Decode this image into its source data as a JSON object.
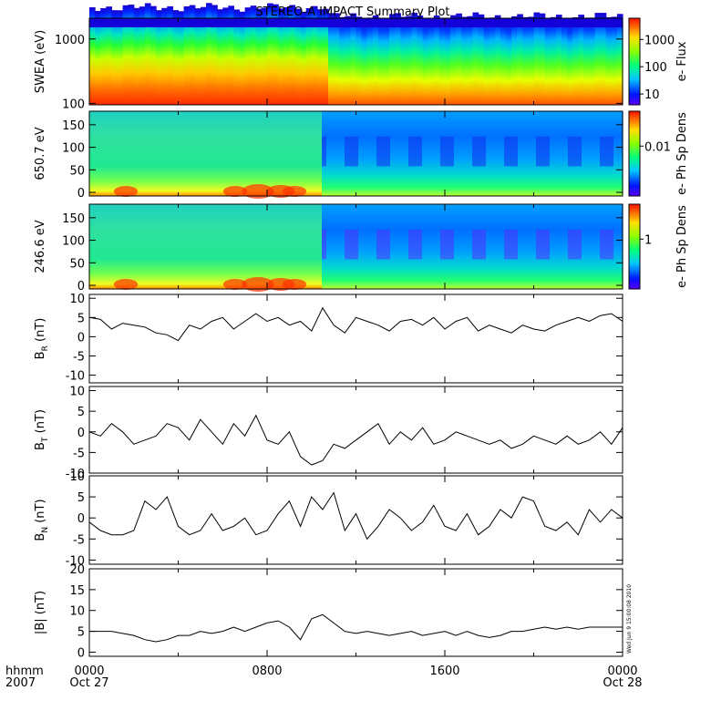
{
  "chart_data": {
    "title": "STEREO-A IMPACT Summary Plot",
    "type": "summary-plot",
    "x_axis": {
      "ticks": [
        "0000",
        "0800",
        "1600",
        "0000"
      ],
      "dates": [
        "Oct 27",
        "",
        "",
        "Oct 28"
      ],
      "corner_top": "hhmm",
      "corner_bottom": "2007",
      "range_hours": [
        0,
        24
      ]
    },
    "timestamp": "Wed Jun  9 15:00:08 2010",
    "panels": [
      {
        "id": "swea",
        "type": "heatmap",
        "ylabel": "SWEA (eV)",
        "yscale": "log",
        "ylim": [
          95,
          2100
        ],
        "yticks": [
          "100",
          "1000"
        ],
        "ytick_values": [
          100,
          1000
        ],
        "colorbar": {
          "label": "e- Flux",
          "ticks": [
            "1000",
            "100",
            "10"
          ],
          "tick_values": [
            1000,
            100,
            10
          ],
          "scale": "log",
          "range": [
            4,
            6000
          ]
        }
      },
      {
        "id": "pad650",
        "type": "heatmap",
        "ylabel": "650.7 eV",
        "ylim": [
          -8,
          180
        ],
        "yticks": [
          "150",
          "100",
          "50",
          "0"
        ],
        "ytick_values": [
          150,
          100,
          50,
          0
        ],
        "colorbar": {
          "label": "e- Ph Sp Dens",
          "ticks": [
            "0.01"
          ],
          "tick_values": [
            0.01
          ],
          "scale": "log",
          "range": [
            0.001,
            0.05
          ]
        }
      },
      {
        "id": "pad246",
        "type": "heatmap",
        "ylabel": "246.6 eV",
        "ylim": [
          -8,
          180
        ],
        "yticks": [
          "150",
          "100",
          "50",
          "0"
        ],
        "ytick_values": [
          150,
          100,
          50,
          0
        ],
        "colorbar": {
          "label": "e- Ph Sp Dens",
          "ticks": [
            "1"
          ],
          "tick_values": [
            1
          ],
          "scale": "log",
          "range": [
            0.1,
            5
          ]
        }
      },
      {
        "id": "br",
        "type": "line",
        "ylabel": "B",
        "ylabel_sub": "R",
        "ylabel_unit": "(nT)",
        "ylim": [
          -12,
          11
        ],
        "yticks": [
          "10",
          "5",
          "0",
          "-5",
          "-10"
        ],
        "ytick_values": [
          10,
          5,
          0,
          -5,
          -10
        ],
        "x": [
          0,
          0.5,
          1,
          1.5,
          2,
          2.5,
          3,
          3.5,
          4,
          4.5,
          5,
          5.5,
          6,
          6.5,
          7,
          7.5,
          8,
          8.5,
          9,
          9.5,
          10,
          10.5,
          11,
          11.5,
          12,
          12.5,
          13,
          13.5,
          14,
          14.5,
          15,
          15.5,
          16,
          16.5,
          17,
          17.5,
          18,
          18.5,
          19,
          19.5,
          20,
          20.5,
          21,
          21.5,
          22,
          22.5,
          23,
          23.5,
          24
        ],
        "values": [
          5,
          4.5,
          2,
          3.5,
          3,
          2.5,
          1,
          0.5,
          -1,
          3,
          2,
          4,
          5,
          2,
          4,
          6,
          4,
          5,
          3,
          4,
          1.5,
          7.5,
          3,
          1,
          5,
          4,
          3,
          1.5,
          4,
          4.5,
          3,
          5,
          2,
          4,
          5,
          1.5,
          3,
          2,
          1,
          3,
          2,
          1.5,
          3,
          4,
          5,
          4,
          5.5,
          6,
          4
        ]
      },
      {
        "id": "bt",
        "type": "line",
        "ylabel": "B",
        "ylabel_sub": "T",
        "ylabel_unit": "(nT)",
        "ylim": [
          -10,
          11
        ],
        "yticks": [
          "10",
          "5",
          "0",
          "-5",
          "-10"
        ],
        "ytick_values": [
          10,
          5,
          0,
          -5,
          -10
        ],
        "x": [
          0,
          0.5,
          1,
          1.5,
          2,
          2.5,
          3,
          3.5,
          4,
          4.5,
          5,
          5.5,
          6,
          6.5,
          7,
          7.5,
          8,
          8.5,
          9,
          9.5,
          10,
          10.5,
          11,
          11.5,
          12,
          12.5,
          13,
          13.5,
          14,
          14.5,
          15,
          15.5,
          16,
          16.5,
          17,
          17.5,
          18,
          18.5,
          19,
          19.5,
          20,
          20.5,
          21,
          21.5,
          22,
          22.5,
          23,
          23.5,
          24
        ],
        "values": [
          0,
          -1,
          2,
          0,
          -3,
          -2,
          -1,
          2,
          1,
          -2,
          3,
          0,
          -3,
          2,
          -1,
          4,
          -2,
          -3,
          0,
          -6,
          -8,
          -7,
          -3,
          -4,
          -2,
          0,
          2,
          -3,
          0,
          -2,
          1,
          -3,
          -2,
          0,
          -1,
          -2,
          -3,
          -2,
          -4,
          -3,
          -1,
          -2,
          -3,
          -1,
          -3,
          -2,
          0,
          -3,
          1
        ]
      },
      {
        "id": "bn",
        "type": "line",
        "ylabel": "B",
        "ylabel_sub": "N",
        "ylabel_unit": "(nT)",
        "ylim": [
          -11,
          10
        ],
        "yticks": [
          "10",
          "5",
          "0",
          "-5",
          "-10"
        ],
        "ytick_values": [
          10,
          5,
          0,
          -5,
          -10
        ],
        "x": [
          0,
          0.5,
          1,
          1.5,
          2,
          2.5,
          3,
          3.5,
          4,
          4.5,
          5,
          5.5,
          6,
          6.5,
          7,
          7.5,
          8,
          8.5,
          9,
          9.5,
          10,
          10.5,
          11,
          11.5,
          12,
          12.5,
          13,
          13.5,
          14,
          14.5,
          15,
          15.5,
          16,
          16.5,
          17,
          17.5,
          18,
          18.5,
          19,
          19.5,
          20,
          20.5,
          21,
          21.5,
          22,
          22.5,
          23,
          23.5,
          24
        ],
        "values": [
          -1,
          -3,
          -4,
          -4,
          -3,
          4,
          2,
          5,
          -2,
          -4,
          -3,
          1,
          -3,
          -2,
          0,
          -4,
          -3,
          1,
          4,
          -2,
          5,
          2,
          6,
          -3,
          1,
          -5,
          -2,
          2,
          0,
          -3,
          -1,
          3,
          -2,
          -3,
          1,
          -4,
          -2,
          2,
          0,
          5,
          4,
          -2,
          -3,
          -1,
          -4,
          2,
          -1,
          2,
          0
        ]
      },
      {
        "id": "bmag",
        "type": "line",
        "ylabel": "|B|",
        "ylabel_unit": "(nT)",
        "ylim": [
          -1,
          20
        ],
        "yticks": [
          "20",
          "15",
          "10",
          "5",
          "0"
        ],
        "ytick_values": [
          20,
          15,
          10,
          5,
          0
        ],
        "x": [
          0,
          0.5,
          1,
          1.5,
          2,
          2.5,
          3,
          3.5,
          4,
          4.5,
          5,
          5.5,
          6,
          6.5,
          7,
          7.5,
          8,
          8.5,
          9,
          9.5,
          10,
          10.5,
          11,
          11.5,
          12,
          12.5,
          13,
          13.5,
          14,
          14.5,
          15,
          15.5,
          16,
          16.5,
          17,
          17.5,
          18,
          18.5,
          19,
          19.5,
          20,
          20.5,
          21,
          21.5,
          22,
          22.5,
          23,
          23.5,
          24
        ],
        "values": [
          5,
          5,
          5,
          4.5,
          4,
          3,
          2.5,
          3,
          4,
          4,
          5,
          4.5,
          5,
          6,
          5,
          6,
          7,
          7.5,
          6,
          3,
          8,
          9,
          7,
          5,
          4.5,
          5,
          4.5,
          4,
          4.5,
          5,
          4,
          4.5,
          5,
          4,
          5,
          4,
          3.5,
          4,
          5,
          5,
          5.5,
          6,
          5.5,
          6,
          5.5,
          6,
          6,
          6,
          6
        ]
      }
    ]
  }
}
